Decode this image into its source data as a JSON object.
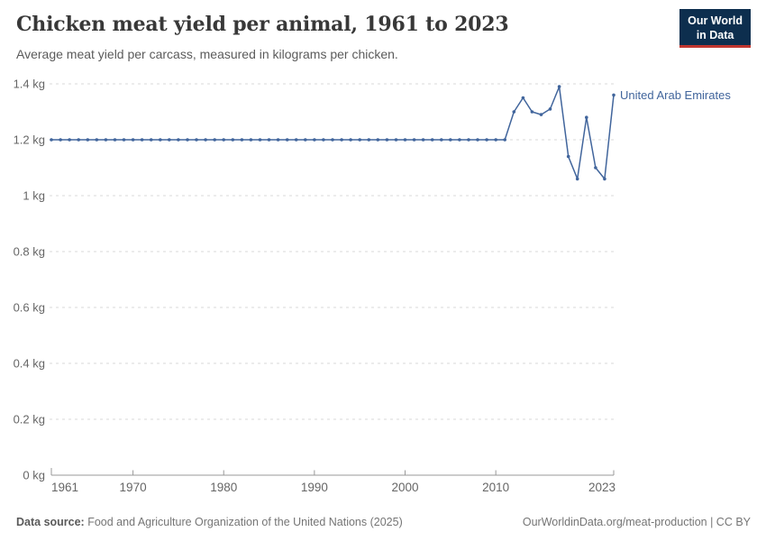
{
  "header": {
    "title": "Chicken meat yield per animal, 1961 to 2023",
    "subtitle": "Average meat yield per carcass, measured in kilograms per chicken.",
    "logo": {
      "line1": "Our World",
      "line2": "in Data",
      "bg_color": "#0d2e4e",
      "accent_color": "#c0362f"
    }
  },
  "chart_data": {
    "type": "line",
    "title": "Chicken meat yield per animal, 1961 to 2023",
    "xlabel": "",
    "ylabel": "",
    "xlim": [
      1961,
      2023
    ],
    "ylim": [
      0,
      1.4
    ],
    "grid": "horizontal-dashed",
    "legend_position": "end-of-line-label",
    "x_ticks": [
      {
        "value": 1961,
        "label": "1961"
      },
      {
        "value": 1970,
        "label": "1970"
      },
      {
        "value": 1980,
        "label": "1980"
      },
      {
        "value": 1990,
        "label": "1990"
      },
      {
        "value": 2000,
        "label": "2000"
      },
      {
        "value": 2010,
        "label": "2010"
      },
      {
        "value": 2023,
        "label": "2023"
      }
    ],
    "y_ticks": [
      {
        "value": 0,
        "label": "0 kg"
      },
      {
        "value": 0.2,
        "label": "0.2 kg"
      },
      {
        "value": 0.4,
        "label": "0.4 kg"
      },
      {
        "value": 0.6,
        "label": "0.6 kg"
      },
      {
        "value": 0.8,
        "label": "0.8 kg"
      },
      {
        "value": 1,
        "label": "1 kg"
      },
      {
        "value": 1.2,
        "label": "1.2 kg"
      },
      {
        "value": 1.4,
        "label": "1.4 kg"
      }
    ],
    "series": [
      {
        "name": "United Arab Emirates",
        "color": "#41659c",
        "x": [
          1961,
          1962,
          1963,
          1964,
          1965,
          1966,
          1967,
          1968,
          1969,
          1970,
          1971,
          1972,
          1973,
          1974,
          1975,
          1976,
          1977,
          1978,
          1979,
          1980,
          1981,
          1982,
          1983,
          1984,
          1985,
          1986,
          1987,
          1988,
          1989,
          1990,
          1991,
          1992,
          1993,
          1994,
          1995,
          1996,
          1997,
          1998,
          1999,
          2000,
          2001,
          2002,
          2003,
          2004,
          2005,
          2006,
          2007,
          2008,
          2009,
          2010,
          2011,
          2012,
          2013,
          2014,
          2015,
          2016,
          2017,
          2018,
          2019,
          2020,
          2021,
          2022,
          2023
        ],
        "values": [
          1.2,
          1.2,
          1.2,
          1.2,
          1.2,
          1.2,
          1.2,
          1.2,
          1.2,
          1.2,
          1.2,
          1.2,
          1.2,
          1.2,
          1.2,
          1.2,
          1.2,
          1.2,
          1.2,
          1.2,
          1.2,
          1.2,
          1.2,
          1.2,
          1.2,
          1.2,
          1.2,
          1.2,
          1.2,
          1.2,
          1.2,
          1.2,
          1.2,
          1.2,
          1.2,
          1.2,
          1.2,
          1.2,
          1.2,
          1.2,
          1.2,
          1.2,
          1.2,
          1.2,
          1.2,
          1.2,
          1.2,
          1.2,
          1.2,
          1.2,
          1.2,
          1.3,
          1.35,
          1.3,
          1.29,
          1.31,
          1.39,
          1.14,
          1.06,
          1.28,
          1.1,
          1.06,
          1.36
        ]
      }
    ],
    "colors": {
      "gridline": "#d9d9d9",
      "axis": "#999999",
      "tick_label": "#666666"
    }
  },
  "footer": {
    "source_label": "Data source:",
    "source_text": "Food and Agriculture Organization of the United Nations (2025)",
    "link_text": "OurWorldinData.org/meat-production | CC BY"
  }
}
